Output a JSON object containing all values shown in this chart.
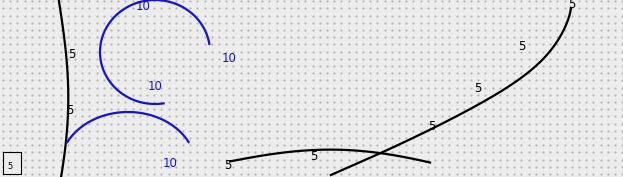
{
  "background_color": "#ececec",
  "dot_color": "#aaaaaa",
  "figsize": [
    6.23,
    1.77
  ],
  "dpi": 100,
  "xlim": [
    0,
    623
  ],
  "ylim": [
    0,
    177
  ],
  "black_color": "#000000",
  "blue_color": "#1414cc",
  "contour_linewidth": 1.6,
  "label_fontsize": 8.5,
  "dot_spacing_x": 7.2,
  "dot_spacing_y": 7.2
}
